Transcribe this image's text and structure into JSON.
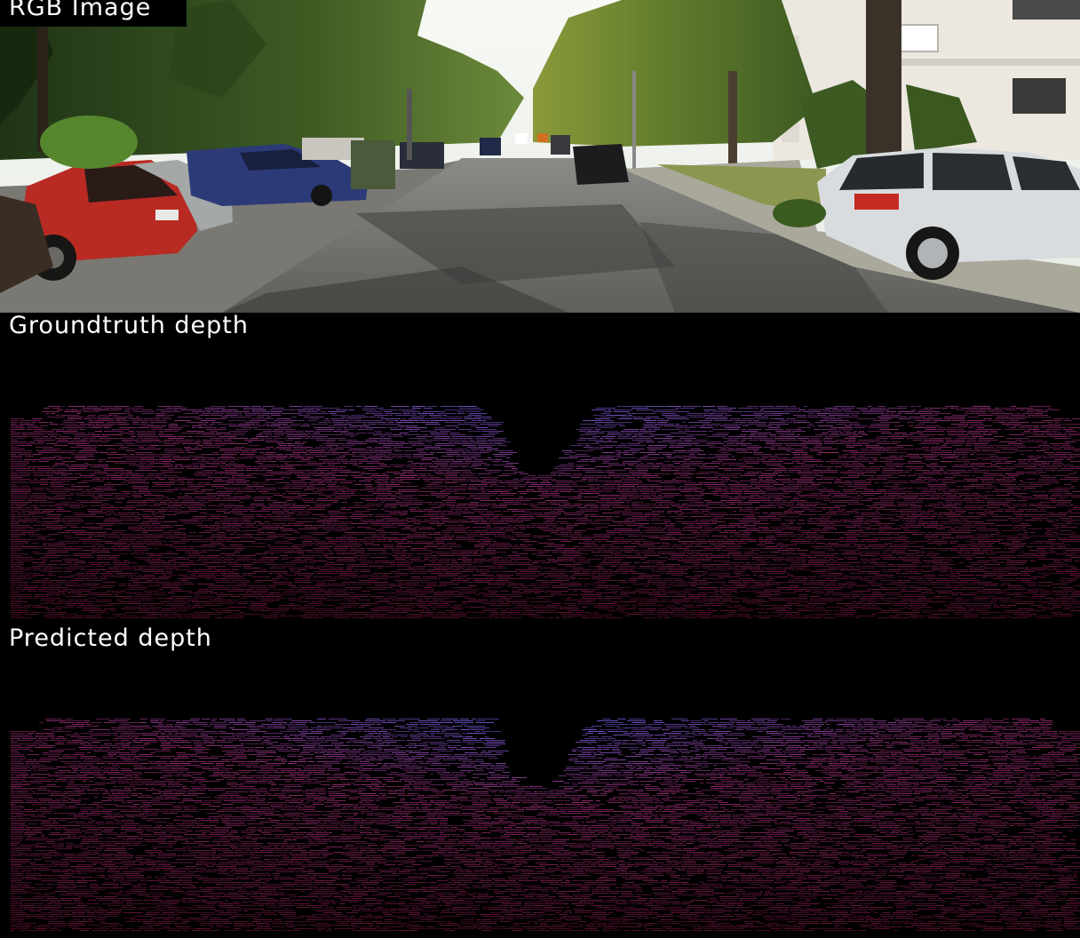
{
  "panels": [
    {
      "id": "rgb",
      "label": "RGB Image"
    },
    {
      "id": "groundtruth",
      "label": "Groundtruth depth"
    },
    {
      "id": "predicted",
      "label": "Predicted depth"
    }
  ],
  "colors": {
    "label_box": "#000000",
    "label_text": "#ffffff",
    "depth_near": "#5a1030",
    "depth_mid": "#8a2a6a",
    "depth_far": "#6a5ad8",
    "sky": "#f4f6f2",
    "foliage": "#3e5a26",
    "road": "#6c6c6a",
    "red_car": "#b82a22",
    "blue_car": "#2c3a78",
    "white_car": "#d8dcde",
    "building": "#ece8e0"
  }
}
